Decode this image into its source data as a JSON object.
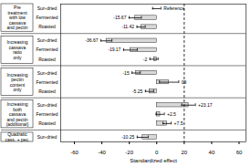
{
  "chart_data": {
    "type": "bar",
    "orientation": "horizontal",
    "xlabel": "Standardized effect",
    "xlim": [
      -70,
      65
    ],
    "xticks": [
      -60,
      -40,
      -20,
      0,
      20,
      40,
      60
    ],
    "color": "#d8d8d8",
    "grid": false,
    "data_labels": true,
    "vline": 20,
    "groups": [
      {
        "label": "Pre\ntreatment\nwith low\ncassava\nand pectin",
        "categories": [
          "Sun-dried",
          "Fermented",
          "Roasted"
        ],
        "values": [
          0,
          -15.67,
          -11.42
        ],
        "errors": [
          3,
          4.5,
          3
        ],
        "value_labels": [
          "Reference",
          "-15.67",
          "-11.42"
        ],
        "reference": [
          true,
          false,
          false
        ]
      },
      {
        "label": "Increasing\ncassava\nratio\nonly",
        "categories": [
          "Sun-dried",
          "Fermented",
          "Roasted"
        ],
        "values": [
          -36.67,
          -19.17,
          -2
        ],
        "errors": [
          4,
          5,
          3
        ],
        "value_labels": [
          "-36.67",
          "-19.17",
          "-2"
        ]
      },
      {
        "label": "Increasing\npectin\ncontent\nonly",
        "categories": [
          "Sun-dried",
          "Fermented",
          "Roasted"
        ],
        "values": [
          -15,
          9,
          -5.25
        ],
        "errors": [
          3,
          7,
          3
        ],
        "value_labels": [
          "-15",
          "09",
          "-5.25"
        ]
      },
      {
        "label": "Increasing\nboth\ncassava\nand pectin\n(additional)",
        "categories": [
          "Sun-dried",
          "Fermented",
          "Roasted"
        ],
        "values": [
          23.17,
          2.5,
          7.5
        ],
        "errors": [
          5,
          3,
          3
        ],
        "value_labels": [
          "+23.17",
          "+2.5",
          "+7.5"
        ]
      },
      {
        "label": "Quadratic\ncass. + pec.",
        "categories": [
          "Sun-dried"
        ],
        "values": [
          -10.25
        ],
        "errors": [
          4
        ],
        "value_labels": [
          "-10.25"
        ]
      }
    ]
  }
}
